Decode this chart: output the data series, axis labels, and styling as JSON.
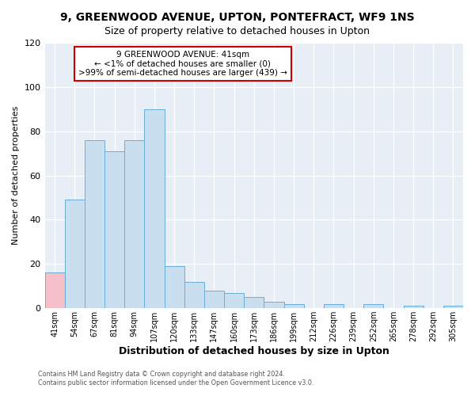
{
  "title": "9, GREENWOOD AVENUE, UPTON, PONTEFRACT, WF9 1NS",
  "subtitle": "Size of property relative to detached houses in Upton",
  "xlabel": "Distribution of detached houses by size in Upton",
  "ylabel": "Number of detached properties",
  "bar_labels": [
    "41sqm",
    "54sqm",
    "67sqm",
    "81sqm",
    "94sqm",
    "107sqm",
    "120sqm",
    "133sqm",
    "147sqm",
    "160sqm",
    "173sqm",
    "186sqm",
    "199sqm",
    "212sqm",
    "226sqm",
    "239sqm",
    "252sqm",
    "265sqm",
    "278sqm",
    "292sqm",
    "305sqm"
  ],
  "bar_values": [
    16,
    49,
    76,
    71,
    76,
    90,
    19,
    12,
    8,
    7,
    5,
    3,
    2,
    0,
    2,
    0,
    2,
    0,
    1,
    0,
    1
  ],
  "bar_color_highlight": "#f5c0c8",
  "bar_color_normal": "#c9dff0",
  "bar_edge_color": "#6aaed6",
  "highlight_indices": [
    0
  ],
  "ylim": [
    0,
    120
  ],
  "yticks": [
    0,
    20,
    40,
    60,
    80,
    100,
    120
  ],
  "annotation_line1": "9 GREENWOOD AVENUE: 41sqm",
  "annotation_line2": "← <1% of detached houses are smaller (0)",
  "annotation_line3": ">99% of semi-detached houses are larger (439) →",
  "footer_line1": "Contains HM Land Registry data © Crown copyright and database right 2024.",
  "footer_line2": "Contains public sector information licensed under the Open Government Licence v3.0.",
  "background_color": "#ffffff",
  "plot_bg_color": "#e8eef5",
  "grid_color": "#ffffff",
  "title_fontsize": 10,
  "subtitle_fontsize": 9
}
